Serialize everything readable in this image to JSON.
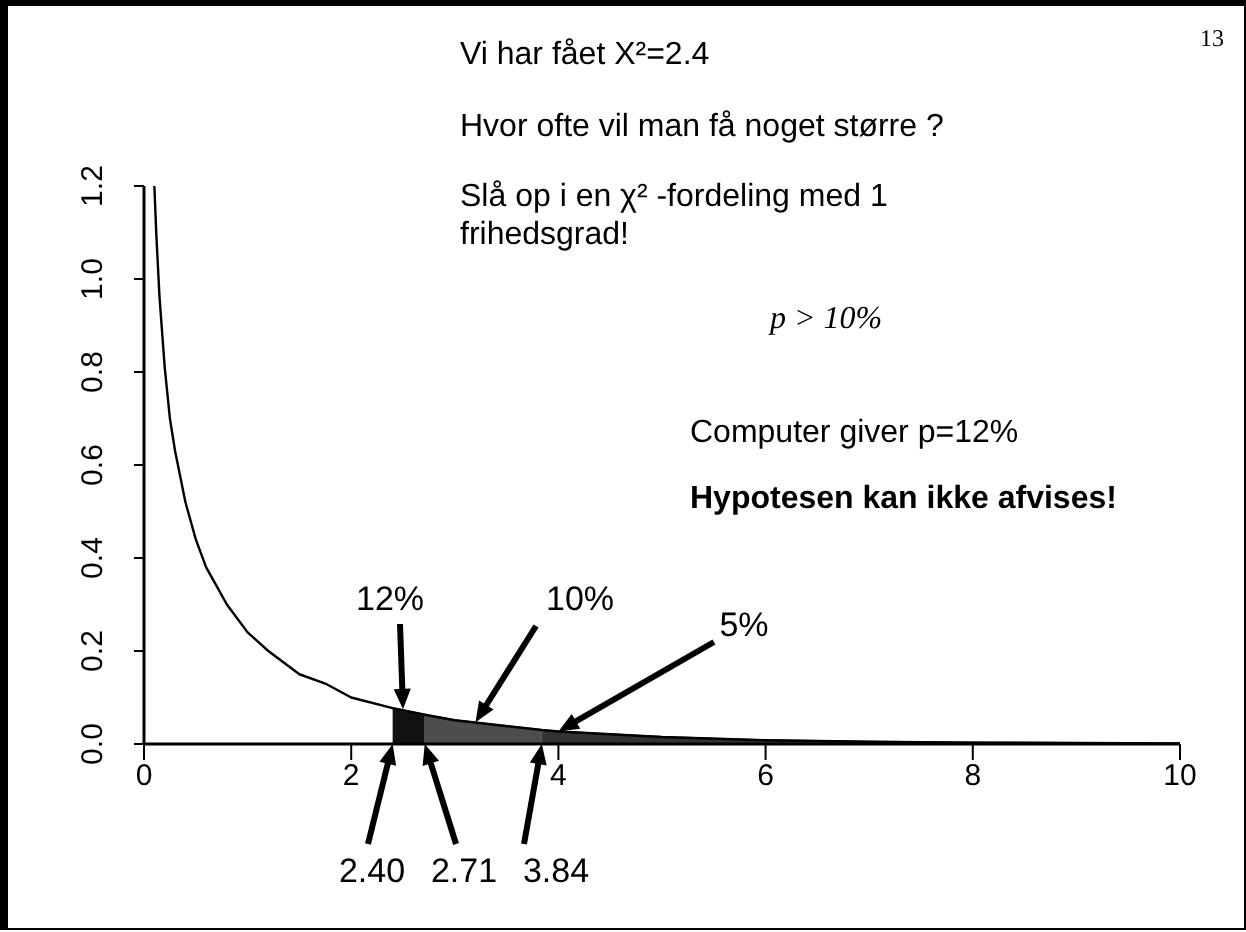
{
  "chart_data": {
    "type": "line",
    "xlim": [
      0,
      10
    ],
    "ylim": [
      0,
      1.2
    ],
    "xticks": [
      0,
      2,
      4,
      6,
      8,
      10
    ],
    "yticks": [
      {
        "value": 0,
        "label": "0.0"
      },
      {
        "value": 0.2,
        "label": "0.2"
      },
      {
        "value": 0.4,
        "label": "0.4"
      },
      {
        "value": 0.6,
        "label": "0.6"
      },
      {
        "value": 0.8,
        "label": "0.8"
      },
      {
        "value": 1,
        "label": "1.0"
      },
      {
        "value": 1.2,
        "label": "1.2"
      }
    ],
    "marker": "none",
    "line_style": "solid",
    "series": [
      {
        "type": "area",
        "color": "#111111",
        "x": [
          2.4,
          2.71
        ],
        "values": [
          0.077,
          0.063
        ]
      },
      {
        "type": "area",
        "color": "#4d4d4d",
        "x": [
          2.71,
          3,
          3.84
        ],
        "values": [
          0.063,
          0.051,
          0.03
        ]
      },
      {
        "type": "area",
        "color": "#333333",
        "x": [
          3.84,
          4,
          5,
          6,
          7,
          8,
          9,
          10
        ],
        "values": [
          0.03,
          0.027,
          0.015,
          0.008,
          0.005,
          0.003,
          0.002,
          0.001
        ]
      },
      {
        "color": "#000000",
        "x": [
          0.1,
          0.12,
          0.15,
          0.2,
          0.25,
          0.3,
          0.4,
          0.5,
          0.6,
          0.7,
          0.8,
          1,
          1.2,
          1.5,
          1.75,
          2,
          2.4,
          2.71,
          3,
          3.84,
          4,
          5,
          6,
          7,
          8,
          9,
          10
        ],
        "values": [
          1.2,
          1.09,
          0.96,
          0.81,
          0.7,
          0.63,
          0.52,
          0.44,
          0.38,
          0.34,
          0.3,
          0.24,
          0.2,
          0.15,
          0.13,
          0.1,
          0.077,
          0.063,
          0.051,
          0.03,
          0.027,
          0.015,
          0.008,
          0.005,
          0.003,
          0.002,
          0.001
        ]
      }
    ],
    "annotations": [
      "13",
      "Vi har fået X²=2.4",
      "Hvor ofte vil man få noget større ?",
      "Slå op i en χ² -fordeling med 1 frihedsgrad!",
      "p > 10%",
      "Computer giver p=12%",
      "Hypotesen kan ikke afvises!",
      {
        "text": "12%",
        "x": 2.5,
        "y": 0.075
      },
      {
        "text": "10%",
        "x": 3.2,
        "y": 0.047
      },
      {
        "text": "5%",
        "x": 4,
        "y": 0.027
      },
      {
        "text": "2.40",
        "x": 2.4,
        "y": 0
      },
      {
        "text": "2.71",
        "x": 2.71,
        "y": 0
      },
      {
        "text": "3.84",
        "x": 3.84,
        "y": 0
      }
    ]
  }
}
